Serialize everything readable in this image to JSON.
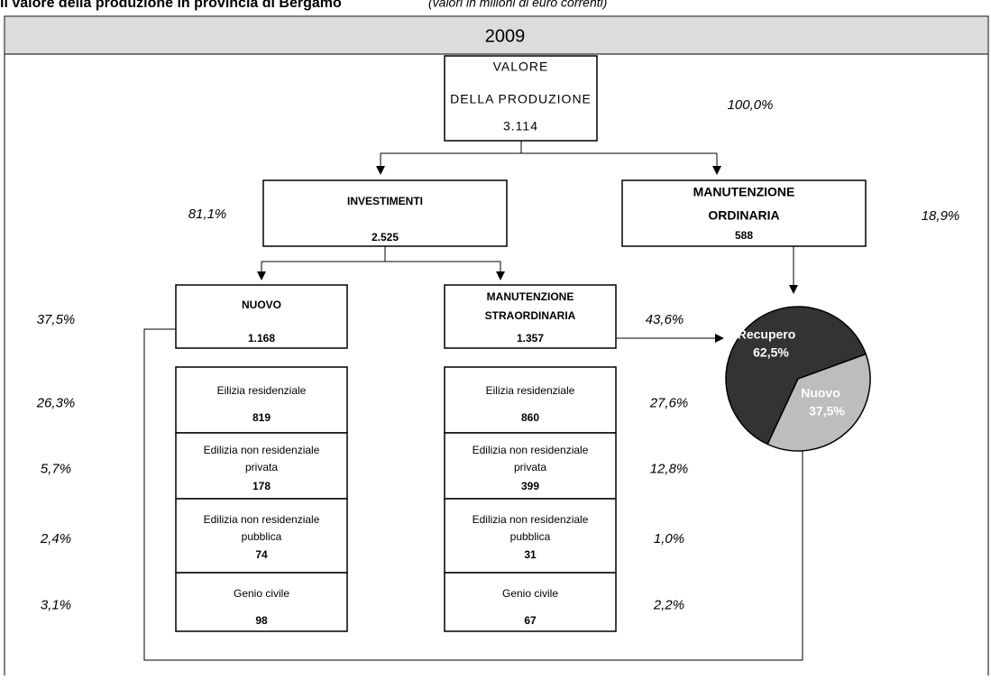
{
  "header": {
    "title": "Il valore della produzione in provincia di Bergamo",
    "subtitle": "(valori in milioni di euro correnti)",
    "year": "2009"
  },
  "nodes": [
    {
      "lines": [
        "VALORE",
        "DELLA PRODUZIONE",
        "3.114"
      ],
      "share": "100,0%"
    },
    {
      "lines": [
        "INVESTIMENTI",
        "2.525"
      ],
      "share": "81,1%"
    },
    {
      "lines": [
        "MANUTENZIONE",
        "ORDINARIA",
        "588"
      ],
      "share": "18,9%"
    },
    {
      "lines": [
        "NUOVO",
        "1.168"
      ],
      "share": "37,5%"
    },
    {
      "lines": [
        "MANUTENZIONE",
        "STRAORDINARIA",
        "1.357"
      ],
      "share": "43,6%"
    }
  ],
  "tables": [
    {
      "rows": [
        {
          "lines": [
            "Eilizia residenziale",
            "819"
          ],
          "share": "26,3%"
        },
        {
          "lines": [
            "Edilizia non residenziale",
            "privata",
            "178"
          ],
          "share": "5,7%"
        },
        {
          "lines": [
            "Edilizia non residenziale",
            "pubblica",
            "74"
          ],
          "share": "2,4%"
        },
        {
          "lines": [
            "Genio civile",
            "98"
          ],
          "share": "3,1%"
        }
      ]
    },
    {
      "rows": [
        {
          "lines": [
            "Eilizia residenziale",
            "860"
          ],
          "share": "27,6%"
        },
        {
          "lines": [
            "Edilizia non residenziale",
            "privata",
            "399"
          ],
          "share": "12,8%"
        },
        {
          "lines": [
            "Edilizia non residenziale",
            "pubblica",
            "31"
          ],
          "share": "1,0%"
        },
        {
          "lines": [
            "Genio civile",
            "67"
          ],
          "share": "2,2%"
        }
      ]
    }
  ],
  "chart_data": {
    "type": "pie",
    "categories": [
      "Recupero",
      "Nuovo"
    ],
    "values": [
      62.5,
      37.5
    ],
    "value_labels": [
      "62,5%",
      "37,5%"
    ],
    "colors": [
      "#333333",
      "#bdbdbd"
    ]
  }
}
